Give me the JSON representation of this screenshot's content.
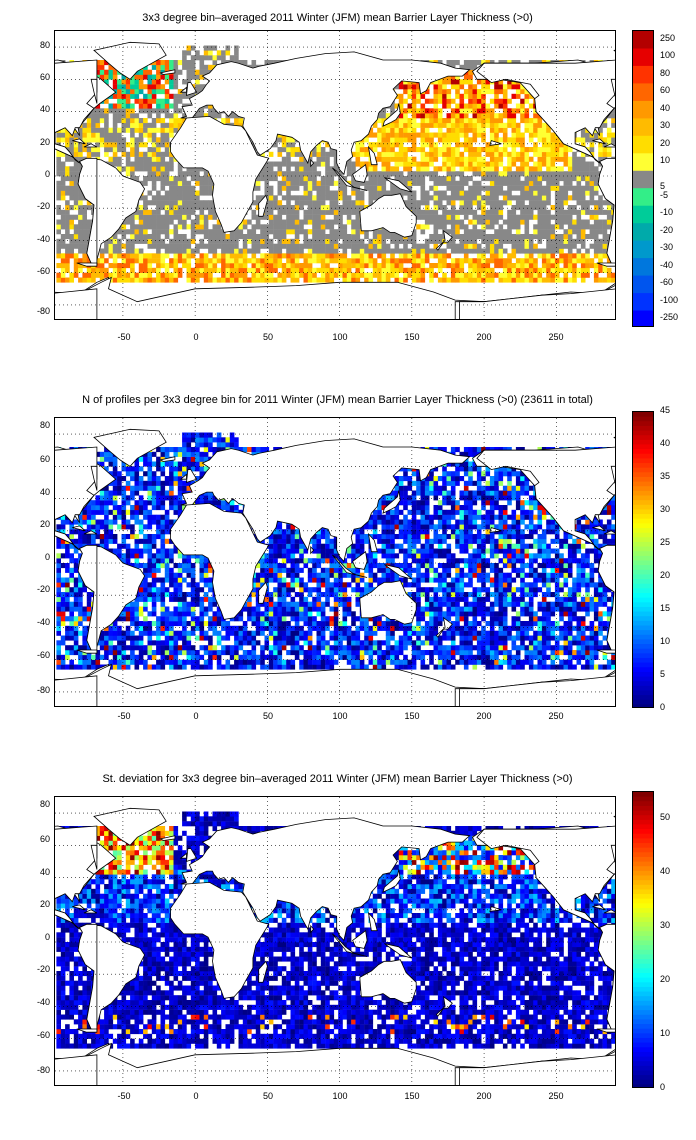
{
  "panels": [
    {
      "id": "mean",
      "title": "3x3 degree bin–averaged 2011 Winter (JFM) mean Barrier Layer Thickness (>0)",
      "colorbar": {
        "type": "discrete",
        "labels": [
          "250",
          "100",
          "80",
          "60",
          "40",
          "30",
          "20",
          "10",
          "5",
          "-5",
          "-10",
          "-20",
          "-30",
          "-40",
          "-60",
          "-100",
          "-250"
        ],
        "colors": [
          "#b30000",
          "#e60000",
          "#ff3300",
          "#ff6600",
          "#ff9900",
          "#ffbb00",
          "#ffdd00",
          "#ffff33",
          "#888888",
          "#33ee88",
          "#00cc99",
          "#00aaaa",
          "#0099cc",
          "#0077dd",
          "#0055ee",
          "#0033ff",
          "#0000ff"
        ]
      }
    },
    {
      "id": "count",
      "title": "N of profiles per 3x3 degree bin for 2011 Winter (JFM) mean Barrier Layer Thickness (>0) (23611 in total)",
      "colorbar": {
        "type": "continuous",
        "labels": [
          "45",
          "40",
          "35",
          "30",
          "25",
          "20",
          "15",
          "10",
          "5",
          "0"
        ],
        "range": [
          0,
          45
        ]
      }
    },
    {
      "id": "std",
      "title": "St. deviation for 3x3 degree bin–averaged 2011 Winter (JFM) mean Barrier Layer Thickness (>0)",
      "colorbar": {
        "type": "continuous",
        "labels": [
          "50",
          "40",
          "30",
          "20",
          "10",
          "0"
        ],
        "range": [
          0,
          55
        ]
      }
    }
  ],
  "axes": {
    "x_ticks": [
      "-50",
      "0",
      "50",
      "100",
      "150",
      "200",
      "250"
    ],
    "y_ticks": [
      "80",
      "60",
      "40",
      "20",
      "0",
      "-20",
      "-40",
      "-60",
      "-80"
    ],
    "xlim": [
      -97,
      292
    ],
    "ylim": [
      -90,
      90
    ],
    "grid": "dotted"
  }
}
